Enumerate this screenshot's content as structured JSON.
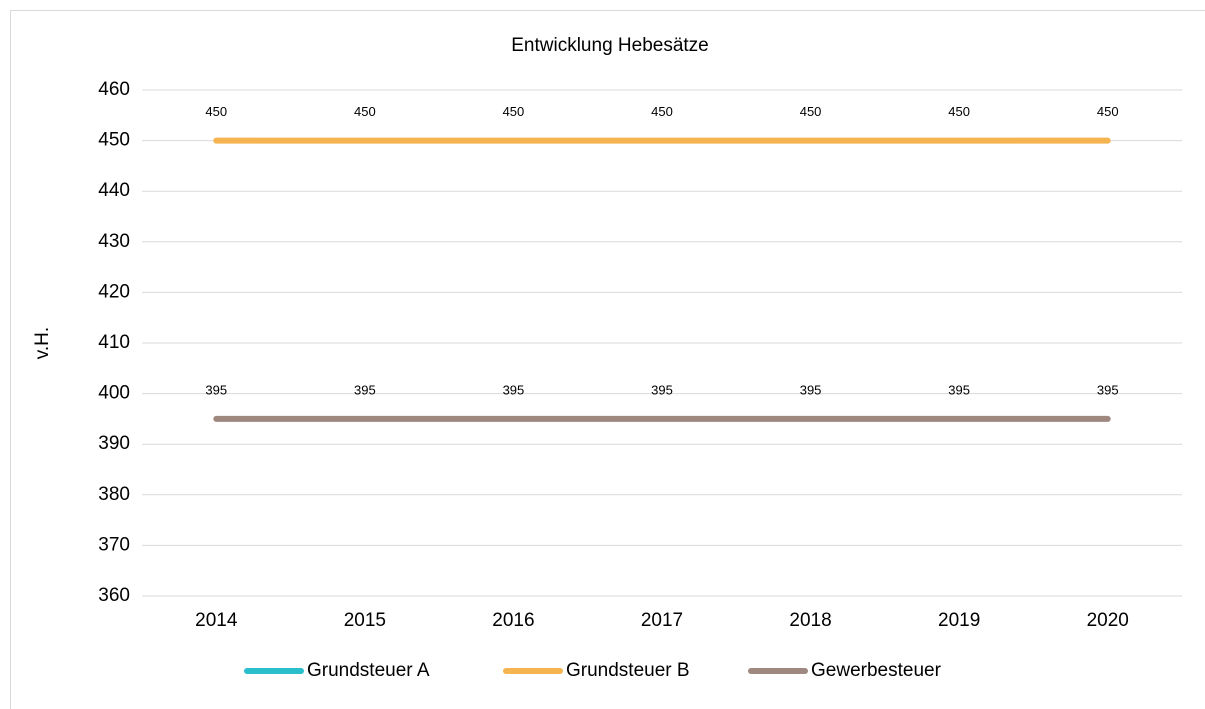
{
  "chart_data": {
    "type": "line",
    "title": "Entwicklung Hebesätze",
    "y_label": "v.H.",
    "categories": [
      "2014",
      "2015",
      "2016",
      "2017",
      "2018",
      "2019",
      "2020"
    ],
    "series": [
      {
        "name": "Grundsteuer A",
        "color": "#2bbfcc",
        "values": [
          null,
          null,
          null,
          null,
          null,
          null,
          null
        ]
      },
      {
        "name": "Grundsteuer B",
        "color": "#f5b44f",
        "values": [
          450,
          450,
          450,
          450,
          450,
          450,
          450
        ]
      },
      {
        "name": "Gewerbesteuer",
        "color": "#9e8880",
        "values": [
          395,
          395,
          395,
          395,
          395,
          395,
          395
        ]
      }
    ],
    "ylim": [
      360,
      460
    ],
    "yticks": [
      360,
      370,
      380,
      390,
      400,
      410,
      420,
      430,
      440,
      450,
      460
    ],
    "grid": true,
    "legend": "bottom",
    "data_labels": true
  }
}
